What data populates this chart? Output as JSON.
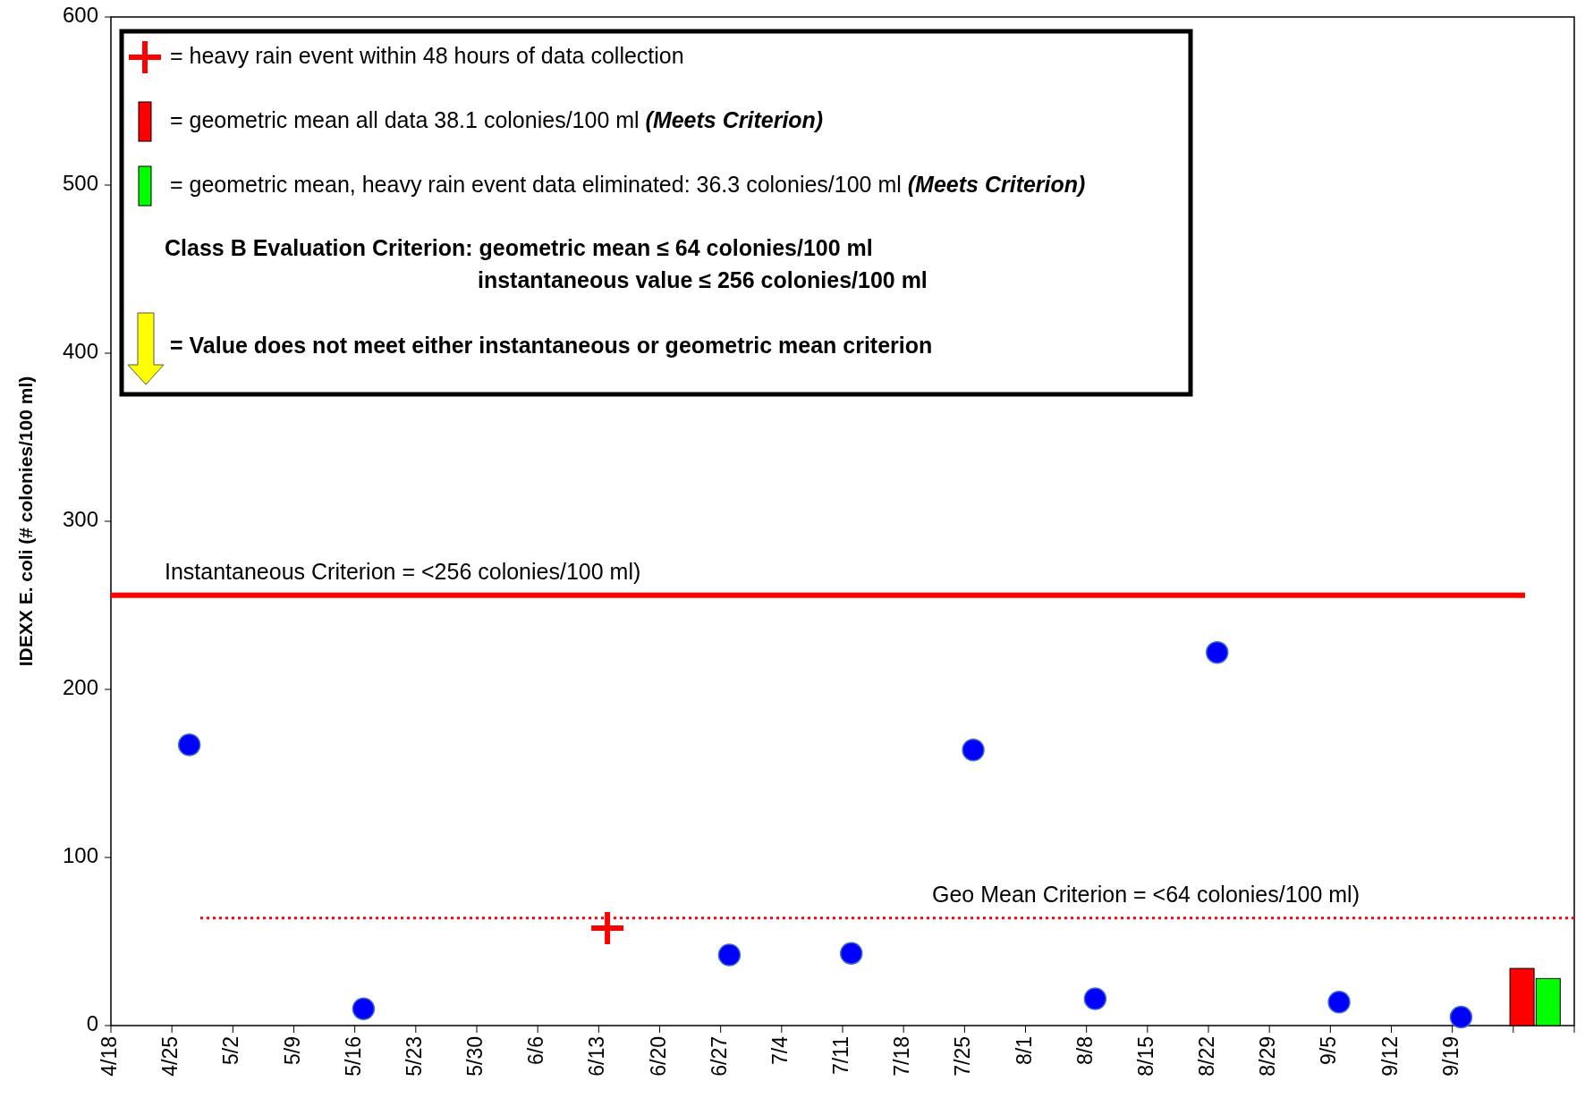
{
  "chart_data": {
    "type": "scatter",
    "ylabel": "IDEXX E. coli (# colonies/100 ml)",
    "xlim": [
      "--04-18",
      "--10-03"
    ],
    "xticks": [
      {
        "value": "--04-18",
        "label": "4/18"
      },
      {
        "value": "--04-25",
        "label": "4/25"
      },
      {
        "value": "--05-02",
        "label": "5/2"
      },
      {
        "value": "--05-09",
        "label": "5/9"
      },
      {
        "value": "--05-16",
        "label": "5/16"
      },
      {
        "value": "--05-23",
        "label": "5/23"
      },
      {
        "value": "--05-30",
        "label": "5/30"
      },
      {
        "value": "--06-06",
        "label": "6/6"
      },
      {
        "value": "--06-13",
        "label": "6/13"
      },
      {
        "value": "--06-20",
        "label": "6/20"
      },
      {
        "value": "--06-27",
        "label": "6/27"
      },
      {
        "value": "--07-04",
        "label": "7/4"
      },
      {
        "value": "--07-11",
        "label": "7/11"
      },
      {
        "value": "--07-18",
        "label": "7/18"
      },
      {
        "value": "--07-25",
        "label": "7/25"
      },
      {
        "value": "--08-01",
        "label": "8/1"
      },
      {
        "value": "--08-08",
        "label": "8/8"
      },
      {
        "value": "--08-15",
        "label": "8/15"
      },
      {
        "value": "--08-22",
        "label": "8/22"
      },
      {
        "value": "--08-29",
        "label": "8/29"
      },
      {
        "value": "--09-05",
        "label": "9/5"
      },
      {
        "value": "--09-12",
        "label": "9/12"
      },
      {
        "value": "--09-19",
        "label": "9/19"
      },
      {
        "value": "--09-26",
        "label": null
      },
      {
        "value": "--10-03",
        "label": null
      }
    ],
    "ylim": [
      0,
      600
    ],
    "yticks": [
      0,
      100,
      200,
      300,
      400,
      500,
      600
    ],
    "grid": false,
    "legend": "top left",
    "series": [
      {
        "color": "#0000ff",
        "marker": "circle",
        "x": [
          "--04-27",
          "--05-17",
          "--06-28",
          "--07-12",
          "--07-26",
          "--08-09",
          "--08-23",
          "--09-06",
          "--09-20"
        ],
        "values": [
          167,
          10,
          42,
          43,
          164,
          16,
          222,
          14,
          5
        ]
      },
      {
        "name": "= heavy rain event within 48 hours of data collection",
        "color": "#ff0000",
        "marker": "cross",
        "x": [
          "--06-14"
        ],
        "values": [
          58
        ]
      },
      {
        "type": "bar",
        "name": "= geometric mean all data 38.1 colonies/100 ml (Meets Criterion)",
        "color": "#ff0000",
        "x": [
          "--09-27"
        ],
        "values": [
          34
        ]
      },
      {
        "type": "bar",
        "name": "= geometric mean, heavy rain event data eliminated: 36.3 colonies/100 ml (Meets Criterion)",
        "color": "#00ff00",
        "x": [
          "--09-30"
        ],
        "values": [
          28
        ]
      }
    ],
    "ref_lines": [
      {
        "axis": "y",
        "value": 256,
        "label": "Instantaneous Criterion = <256 colonies/100 ml)",
        "color": "#ff0000",
        "line_style": "solid"
      },
      {
        "axis": "y",
        "value": 64,
        "label": "Geo Mean Criterion = <64 colonies/100 ml)",
        "color": "#ff0000",
        "line_style": "dotted"
      }
    ],
    "annotations": [
      "Class B Evaluation Criterion: geometric mean ≤ 64 colonies/100 ml",
      "instantaneous value ≤ 256 colonies/100 ml",
      "= Value does not meet either instantaneous or geometric mean criterion"
    ]
  }
}
